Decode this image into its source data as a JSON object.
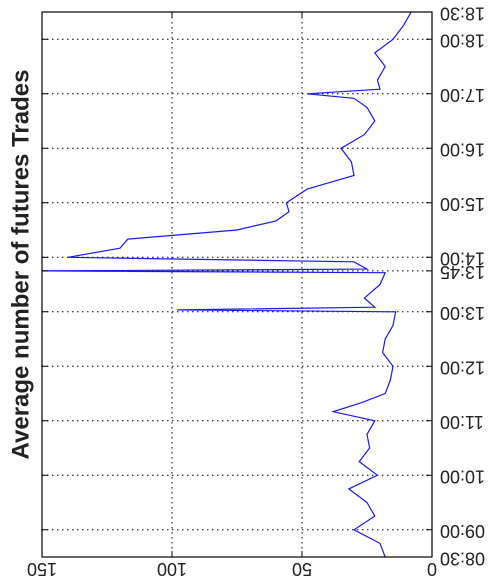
{
  "chart_data": {
    "type": "line",
    "orientation": "rotated 90 degrees (time runs vertically, value axis runs horizontally reversed)",
    "title": "",
    "ylabel": "Average number of futures Trades",
    "xlabel": "",
    "ylim": [
      0,
      150
    ],
    "y_ticks": [
      "0",
      "50",
      "100",
      "150"
    ],
    "x_ticks": [
      "08:30",
      "09:00",
      "10:00",
      "11:00",
      "12:00",
      "13:00",
      "13:45",
      "14:00",
      "15:00",
      "16:00",
      "17:00",
      "18:00",
      "18:30"
    ],
    "grid": true,
    "line_color": "#1a1aee",
    "series": [
      {
        "x": [
          "08:30",
          "08:45",
          "09:00",
          "09:15",
          "09:30",
          "09:45",
          "10:00",
          "10:15",
          "10:30",
          "10:45",
          "11:00",
          "11:10",
          "11:20",
          "11:30",
          "11:45",
          "12:00",
          "12:15",
          "12:30",
          "12:45",
          "13:00",
          "13:02",
          "13:05",
          "13:15",
          "13:30",
          "13:43",
          "13:45",
          "13:47",
          "13:55",
          "14:00",
          "14:10",
          "14:20",
          "14:30",
          "14:40",
          "14:50",
          "15:00",
          "15:15",
          "15:30",
          "15:45",
          "16:00",
          "16:15",
          "16:30",
          "16:45",
          "16:55",
          "17:00",
          "17:05",
          "17:15",
          "17:30",
          "17:45",
          "18:00",
          "18:15",
          "18:30"
        ],
        "values": [
          18,
          20,
          30,
          22,
          25,
          32,
          21,
          28,
          24,
          25,
          22,
          38,
          27,
          18,
          16,
          15,
          19,
          18,
          15,
          14,
          98,
          22,
          26,
          20,
          18,
          150,
          25,
          30,
          140,
          120,
          117,
          75,
          60,
          55,
          56,
          48,
          30,
          31,
          35,
          26,
          22,
          25,
          30,
          48,
          20,
          21,
          18,
          22,
          15,
          11,
          8
        ]
      }
    ]
  }
}
